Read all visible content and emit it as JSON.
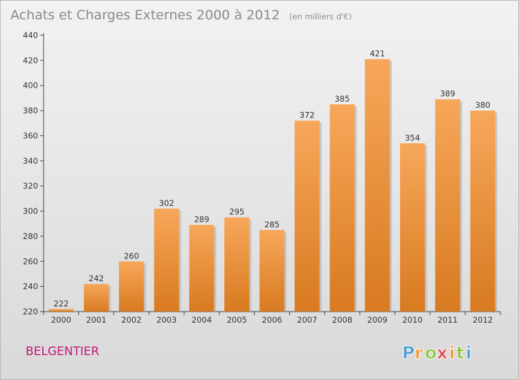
{
  "chart_data": {
    "type": "bar",
    "title": "Achats et Charges Externes 2000 à 2012",
    "subtitle": "(en milliers d'€)",
    "categories": [
      "2000",
      "2001",
      "2002",
      "2003",
      "2004",
      "2005",
      "2006",
      "2007",
      "2008",
      "2009",
      "2010",
      "2011",
      "2012"
    ],
    "values": [
      222,
      242,
      260,
      302,
      289,
      295,
      285,
      372,
      385,
      421,
      354,
      389,
      380
    ],
    "ylim": [
      220,
      440
    ],
    "yticks": [
      220,
      240,
      260,
      280,
      300,
      320,
      340,
      360,
      380,
      400,
      420,
      440
    ],
    "grid": false,
    "bar_color_top": "#f7a75a",
    "bar_color_bottom": "#d87a20"
  },
  "place": "BELGENTIER",
  "logo": {
    "letters": [
      "P",
      "r",
      "o",
      "x",
      "i",
      "t",
      "i"
    ],
    "colors": [
      "#4a9fd8",
      "#f29a2e",
      "#8cc63f",
      "#e8454c",
      "#f29a2e",
      "#8cc63f",
      "#4a9fd8"
    ]
  }
}
